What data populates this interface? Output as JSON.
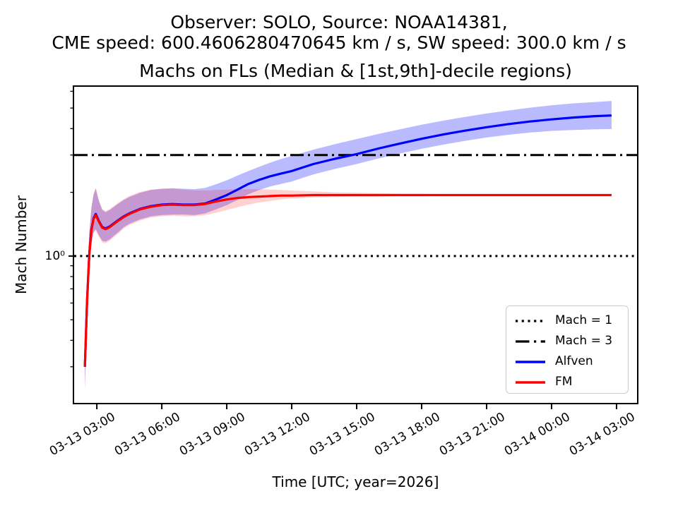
{
  "figure": {
    "suptitle_line1": "Observer: SOLO, Source: NOAA14381,",
    "suptitle_line2": "CME speed: 600.4606280470645 km / s, SW speed: 300.0 km / s",
    "background_color": "#ffffff"
  },
  "chart_data": {
    "type": "line",
    "title": "Machs on FLs (Median & [1st,9th]-decile regions)",
    "xlabel": "Time [UTC; year=2026]",
    "ylabel": "Mach Number",
    "y_scale": "log",
    "ylim": [
      0.201,
      6.35
    ],
    "xlim_hours": [
      1.92,
      27.98
    ],
    "x_unit": "hours since 2026-03-13 00:00 UTC",
    "grid": false,
    "band_meaning": "[1st,9th]-decile region around median",
    "y_ticks": {
      "major": [
        {
          "value": 1,
          "label": "10⁰"
        }
      ],
      "minor": [
        0.3,
        0.4,
        0.5,
        0.6,
        0.7,
        0.8,
        0.9,
        2,
        3,
        4,
        5,
        6
      ]
    },
    "x_ticks": [
      {
        "hour": 3,
        "label": "03-13 03:00"
      },
      {
        "hour": 6,
        "label": "03-13 06:00"
      },
      {
        "hour": 9,
        "label": "03-13 09:00"
      },
      {
        "hour": 12,
        "label": "03-13 12:00"
      },
      {
        "hour": 15,
        "label": "03-13 15:00"
      },
      {
        "hour": 18,
        "label": "03-13 18:00"
      },
      {
        "hour": 21,
        "label": "03-13 21:00"
      },
      {
        "hour": 24,
        "label": "03-14 00:00"
      },
      {
        "hour": 27,
        "label": "03-14 03:00"
      }
    ],
    "reference_lines": [
      {
        "name": "Mach = 1",
        "value": 1,
        "style": "dotted",
        "color": "#000000"
      },
      {
        "name": "Mach = 3",
        "value": 3,
        "style": "dashdot",
        "color": "#000000"
      }
    ],
    "times_hours": [
      2.45,
      2.55,
      2.65,
      2.75,
      2.85,
      2.95,
      3.1,
      3.25,
      3.4,
      3.6,
      3.8,
      4.0,
      4.25,
      4.5,
      5.0,
      5.5,
      6.0,
      6.5,
      7.0,
      7.5,
      8.0,
      8.5,
      9.0,
      9.5,
      10.0,
      10.5,
      11.0,
      11.5,
      12.0,
      13.0,
      14.0,
      15.0,
      16.0,
      17.0,
      18.0,
      19.0,
      20.0,
      21.0,
      22.0,
      23.0,
      24.0,
      25.0,
      26.0,
      26.77
    ],
    "series": [
      {
        "name": "Alfven",
        "color": "#0000ff",
        "band_opacity": 0.27,
        "median": [
          0.3,
          0.62,
          1.02,
          1.33,
          1.51,
          1.58,
          1.46,
          1.37,
          1.35,
          1.38,
          1.43,
          1.48,
          1.54,
          1.59,
          1.67,
          1.72,
          1.75,
          1.76,
          1.75,
          1.75,
          1.77,
          1.85,
          1.94,
          2.06,
          2.19,
          2.29,
          2.38,
          2.45,
          2.52,
          2.72,
          2.88,
          3.03,
          3.22,
          3.4,
          3.58,
          3.75,
          3.91,
          4.06,
          4.2,
          4.32,
          4.42,
          4.51,
          4.58,
          4.61
        ],
        "decile_low": [
          0.24,
          0.51,
          0.86,
          1.15,
          1.3,
          1.34,
          1.25,
          1.18,
          1.17,
          1.2,
          1.25,
          1.3,
          1.37,
          1.42,
          1.49,
          1.54,
          1.56,
          1.57,
          1.57,
          1.56,
          1.59,
          1.66,
          1.74,
          1.84,
          1.96,
          2.05,
          2.13,
          2.19,
          2.25,
          2.43,
          2.58,
          2.72,
          2.89,
          3.05,
          3.21,
          3.36,
          3.5,
          3.63,
          3.74,
          3.83,
          3.9,
          3.94,
          3.97,
          3.98
        ],
        "decile_high": [
          0.37,
          0.78,
          1.28,
          1.68,
          1.95,
          2.08,
          1.81,
          1.65,
          1.61,
          1.65,
          1.71,
          1.77,
          1.84,
          1.9,
          1.99,
          2.05,
          2.08,
          2.09,
          2.08,
          2.07,
          2.1,
          2.18,
          2.28,
          2.4,
          2.52,
          2.64,
          2.76,
          2.87,
          2.97,
          3.18,
          3.38,
          3.57,
          3.77,
          3.97,
          4.17,
          4.36,
          4.54,
          4.71,
          4.87,
          5.02,
          5.15,
          5.26,
          5.34,
          5.4
        ]
      },
      {
        "name": "FM",
        "color": "#ff0000",
        "band_opacity": 0.18,
        "median": [
          0.3,
          0.61,
          1.01,
          1.32,
          1.5,
          1.56,
          1.45,
          1.36,
          1.34,
          1.37,
          1.42,
          1.47,
          1.53,
          1.58,
          1.66,
          1.71,
          1.74,
          1.75,
          1.74,
          1.74,
          1.76,
          1.81,
          1.85,
          1.88,
          1.9,
          1.91,
          1.92,
          1.93,
          1.93,
          1.94,
          1.94,
          1.94,
          1.94,
          1.94,
          1.94,
          1.94,
          1.94,
          1.94,
          1.94,
          1.94,
          1.94,
          1.94,
          1.94,
          1.94
        ],
        "decile_low": [
          0.23,
          0.5,
          0.85,
          1.13,
          1.28,
          1.32,
          1.23,
          1.16,
          1.15,
          1.18,
          1.23,
          1.28,
          1.35,
          1.4,
          1.47,
          1.52,
          1.54,
          1.55,
          1.54,
          1.54,
          1.56,
          1.6,
          1.65,
          1.7,
          1.75,
          1.79,
          1.82,
          1.85,
          1.87,
          1.89,
          1.9,
          1.91,
          1.91,
          1.92,
          1.92,
          1.92,
          1.92,
          1.92,
          1.92,
          1.92,
          1.92,
          1.92,
          1.92,
          1.92
        ],
        "decile_high": [
          0.38,
          0.79,
          1.3,
          1.7,
          1.97,
          2.1,
          1.83,
          1.67,
          1.63,
          1.67,
          1.73,
          1.79,
          1.86,
          1.92,
          2.01,
          2.06,
          2.08,
          2.08,
          2.06,
          2.04,
          2.04,
          2.05,
          2.06,
          2.07,
          2.07,
          2.07,
          2.06,
          2.05,
          2.04,
          2.02,
          2.0,
          1.99,
          1.98,
          1.97,
          1.97,
          1.96,
          1.96,
          1.96,
          1.96,
          1.96,
          1.96,
          1.96,
          1.96,
          1.96
        ]
      }
    ],
    "legend": {
      "position": "lower right",
      "items": [
        {
          "label": "Mach = 1",
          "style": "dotted",
          "color": "#000000"
        },
        {
          "label": "Mach = 3",
          "style": "dashdot",
          "color": "#000000"
        },
        {
          "label": "Alfven",
          "style": "solid",
          "color": "#0000ff"
        },
        {
          "label": "FM",
          "style": "solid",
          "color": "#ff0000"
        }
      ]
    }
  }
}
